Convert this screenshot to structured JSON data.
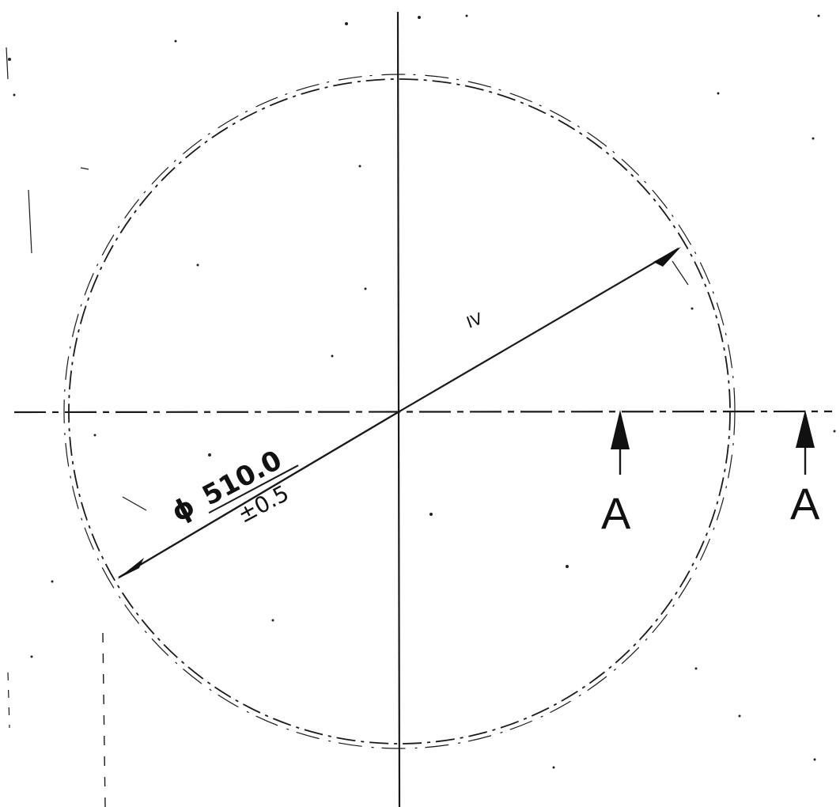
{
  "dimension": {
    "symbol": "ϕ",
    "value": "510.0",
    "tolerance": "±0.5"
  },
  "section_markers": [
    {
      "letter": "A"
    },
    {
      "letter": "A"
    }
  ],
  "stray_mark": "IV",
  "colors": {
    "ink": "#1a1a1a",
    "paper": "#ffffff"
  }
}
